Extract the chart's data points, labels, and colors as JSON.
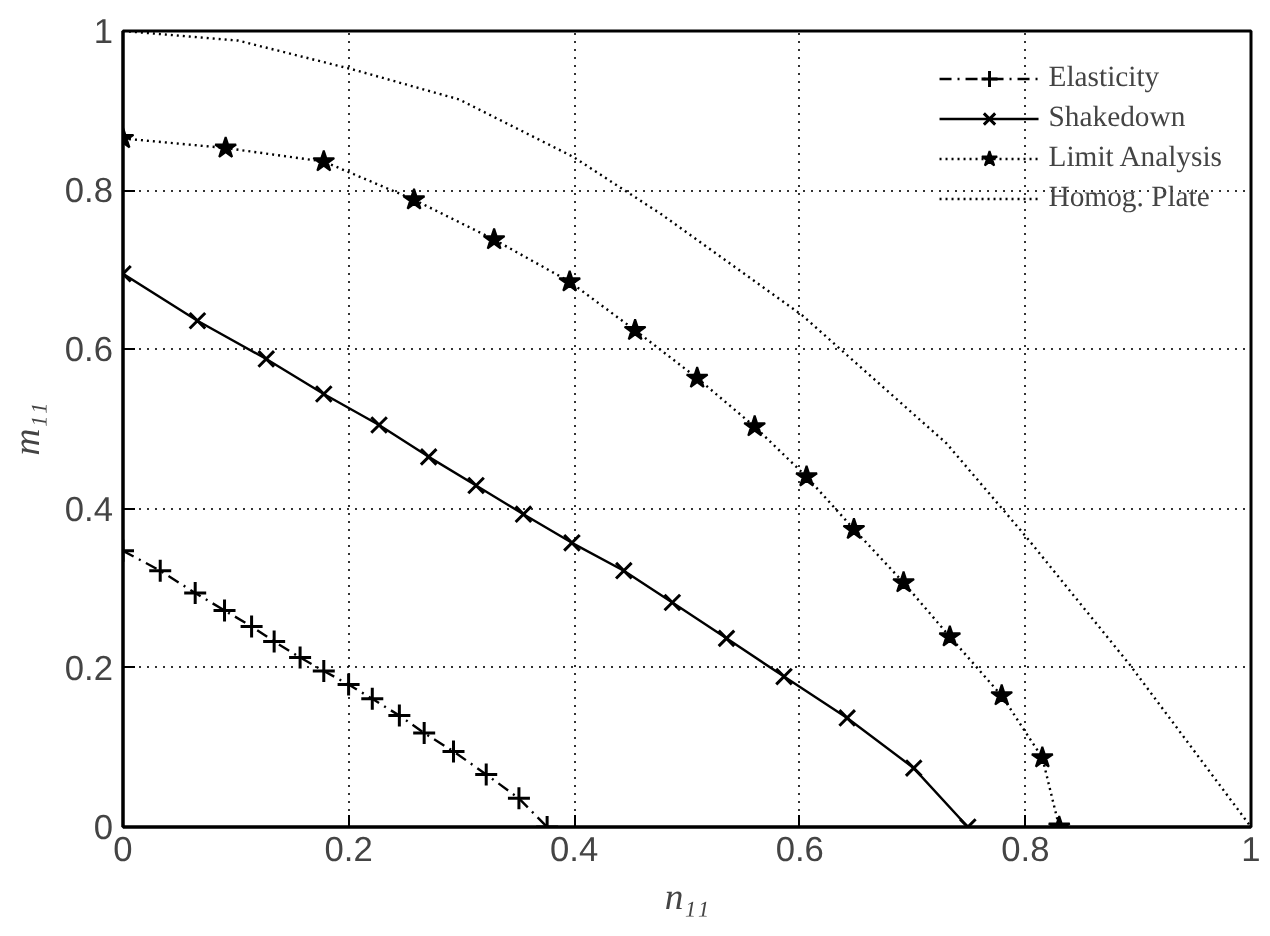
{
  "chart_data": {
    "type": "line",
    "xlabel": "n₁₁",
    "ylabel": "m₁₁",
    "xlim": [
      0,
      1
    ],
    "ylim": [
      0,
      1
    ],
    "xticks": [
      0,
      0.2,
      0.4,
      0.6,
      0.8,
      1
    ],
    "yticks": [
      0,
      0.2,
      0.4,
      0.6,
      0.8,
      1
    ],
    "grid": true,
    "legend": "top right",
    "series": [
      {
        "name": "Elasticity",
        "color": "#000000",
        "marker": "cross",
        "line_style": "dashdot",
        "x": [
          0,
          0.033,
          0.064,
          0.09,
          0.114,
          0.134,
          0.157,
          0.178,
          0.2,
          0.221,
          0.245,
          0.267,
          0.293,
          0.322,
          0.351,
          0.376
        ],
        "values": [
          0.347,
          0.322,
          0.294,
          0.272,
          0.252,
          0.233,
          0.213,
          0.196,
          0.179,
          0.161,
          0.14,
          0.118,
          0.095,
          0.066,
          0.036,
          0
        ]
      },
      {
        "name": "Shakedown",
        "color": "#000000",
        "marker": "x",
        "line_style": "solid",
        "x": [
          0,
          0.066,
          0.127,
          0.178,
          0.227,
          0.271,
          0.313,
          0.355,
          0.398,
          0.444,
          0.487,
          0.535,
          0.586,
          0.642,
          0.701,
          0.749
        ],
        "values": [
          0.695,
          0.636,
          0.588,
          0.544,
          0.505,
          0.465,
          0.429,
          0.393,
          0.357,
          0.322,
          0.282,
          0.237,
          0.189,
          0.137,
          0.074,
          0
        ]
      },
      {
        "name": "Limit Analysis",
        "color": "#000000",
        "marker": "star",
        "line_style": "dotted",
        "x": [
          0,
          0.091,
          0.178,
          0.258,
          0.329,
          0.396,
          0.454,
          0.509,
          0.56,
          0.606,
          0.648,
          0.692,
          0.733,
          0.779,
          0.815,
          0.83
        ],
        "values": [
          0.865,
          0.853,
          0.836,
          0.788,
          0.738,
          0.685,
          0.624,
          0.564,
          0.503,
          0.44,
          0.374,
          0.307,
          0.239,
          0.165,
          0.087,
          0
        ]
      },
      {
        "name": "Homog. Plate",
        "color": "#000000",
        "marker": "none",
        "line_style": "dotted",
        "x": [
          0,
          0.102,
          0.203,
          0.298,
          0.399,
          0.477,
          0.602,
          0.73,
          0.801,
          0.893,
          1
        ],
        "values": [
          1,
          0.988,
          0.952,
          0.914,
          0.842,
          0.77,
          0.643,
          0.482,
          0.364,
          0.203,
          0
        ]
      }
    ]
  }
}
